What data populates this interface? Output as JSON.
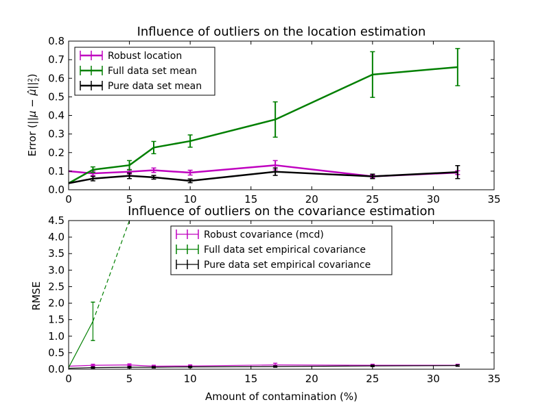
{
  "colors": {
    "robust": "#bf00bf",
    "full": "#007f00",
    "pure": "#000000"
  },
  "chart_data": [
    {
      "type": "line",
      "title": "Influence of outliers on the location estimation",
      "xlabel": "",
      "ylabel": "Error ($||\\mu - \\hat{\\mu}||_2^2$)",
      "ylabel_display": {
        "prefix": "Error (",
        "math": "||μ − μ̂||",
        "sup": "2",
        "sub": "2",
        "suffix": ")"
      },
      "xlim": [
        0,
        35
      ],
      "ylim": [
        0,
        0.8
      ],
      "xticks": [
        "0",
        "5",
        "10",
        "15",
        "20",
        "25",
        "30",
        "35"
      ],
      "yticks": [
        "0.0",
        "0.1",
        "0.2",
        "0.3",
        "0.4",
        "0.5",
        "0.6",
        "0.7",
        "0.8"
      ],
      "legend_placement": "top-left",
      "x": [
        0,
        2,
        5,
        7,
        10,
        17,
        25,
        32
      ],
      "series": [
        {
          "name": "Robust location",
          "color_key": "robust",
          "values": [
            0.1,
            0.088,
            0.097,
            0.105,
            0.092,
            0.132,
            0.072,
            0.092
          ],
          "errors": [
            0.0,
            0.012,
            0.012,
            0.012,
            0.013,
            0.025,
            0.008,
            0.01
          ]
        },
        {
          "name": "Full data set mean",
          "color_key": "full",
          "values": [
            0.035,
            0.108,
            0.132,
            0.227,
            0.262,
            0.378,
            0.62,
            0.66
          ],
          "errors": [
            0.0,
            0.015,
            0.025,
            0.033,
            0.033,
            0.095,
            0.123,
            0.1
          ]
        },
        {
          "name": "Pure data set mean",
          "color_key": "pure",
          "values": [
            0.035,
            0.06,
            0.075,
            0.067,
            0.048,
            0.097,
            0.072,
            0.095
          ],
          "errors": [
            0.0,
            0.012,
            0.015,
            0.01,
            0.01,
            0.02,
            0.012,
            0.035
          ]
        }
      ]
    },
    {
      "type": "line",
      "title": "Influence of outliers on the covariance estimation",
      "xlabel": "Amount of contamination (%)",
      "ylabel": "RMSE",
      "xlim": [
        0,
        35
      ],
      "ylim": [
        0,
        4.5
      ],
      "xticks": [
        "0",
        "5",
        "10",
        "15",
        "20",
        "25",
        "30",
        "35"
      ],
      "yticks": [
        "0.0",
        "0.5",
        "1.0",
        "1.5",
        "2.0",
        "2.5",
        "3.0",
        "3.5",
        "4.0",
        "4.5"
      ],
      "legend_placement": "top-center",
      "x": [
        0,
        2,
        5,
        7,
        10,
        17,
        25,
        32
      ],
      "series": [
        {
          "name": "Robust covariance (mcd)",
          "color_key": "robust",
          "values": [
            0.09,
            0.12,
            0.13,
            0.09,
            0.1,
            0.13,
            0.12,
            0.12
          ],
          "errors": [
            0.0,
            0.03,
            0.03,
            0.03,
            0.03,
            0.05,
            0.03,
            0.03
          ]
        },
        {
          "name": "Full data set empirical covariance",
          "color_key": "full",
          "values": [
            0.05,
            1.45,
            4.5
          ],
          "x": [
            0,
            2,
            5
          ],
          "errors": [
            0.0,
            0.58,
            0.0
          ],
          "dashed_from": 1
        },
        {
          "name": "Pure data set empirical covariance",
          "color_key": "pure",
          "values": [
            0.03,
            0.05,
            0.06,
            0.06,
            0.07,
            0.08,
            0.1,
            0.11
          ],
          "errors": [
            0.0,
            0.02,
            0.02,
            0.02,
            0.02,
            0.02,
            0.02,
            0.02
          ]
        }
      ]
    }
  ]
}
